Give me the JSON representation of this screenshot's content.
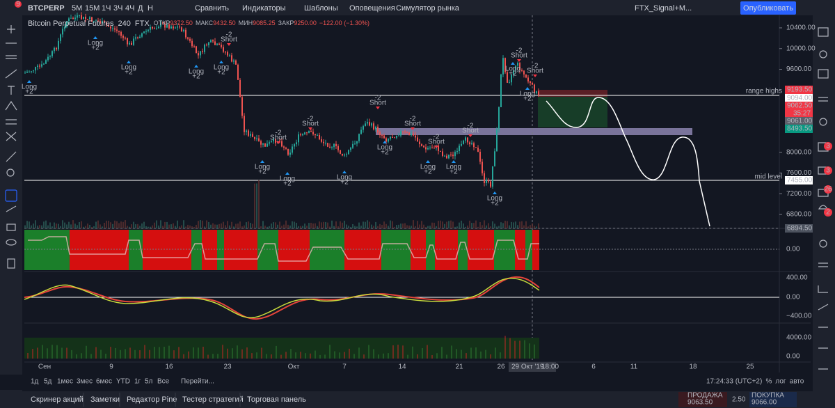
{
  "toolbar": {
    "symbol": "BTCPERP",
    "badge": "9",
    "intervals": [
      "5М",
      "15М",
      "1Ч",
      "3Ч",
      "4Ч",
      "Д",
      "Н"
    ],
    "buttons": [
      "Сравнить",
      "Индикаторы",
      "Шаблоны",
      "Оповещения",
      "Симулятор рынка"
    ],
    "layout_name": "FTX_Signal+M...",
    "publish": "Опубликовать"
  },
  "legend": {
    "title": "Bitcoin Perpetual Futures",
    "interval": "240",
    "exchange": "FTX",
    "ohlc": [
      {
        "label": "ОТКР",
        "value": "9372.50"
      },
      {
        "label": "МАКС",
        "value": "9432.50"
      },
      {
        "label": "МИН",
        "value": "9085.25"
      },
      {
        "label": "ЗАКР",
        "value": "9250.00"
      }
    ],
    "change": "−122.00 (−1.30%)"
  },
  "price_axis": {
    "ticks": [
      {
        "value": 10400,
        "label": "10400.00"
      },
      {
        "value": 10000,
        "label": "10000.00"
      },
      {
        "value": 9600,
        "label": "9600.00"
      },
      {
        "value": 8000,
        "label": "8000.00"
      },
      {
        "value": 7600,
        "label": "7600.00"
      },
      {
        "value": 7200,
        "label": "7200.00"
      },
      {
        "value": 6800,
        "label": "6800.00"
      }
    ],
    "badges": [
      {
        "value": 9193.5,
        "label": "9193.50",
        "color": "#f23645"
      },
      {
        "value": 9094,
        "label": "9094.00",
        "color": "#ffffff"
      },
      {
        "value": 9062.5,
        "label": "9062.50",
        "color": "#f23645"
      },
      {
        "value": 9061,
        "label": "9061.00",
        "color": "#5d606b"
      },
      {
        "value": 8493.5,
        "label": "8493.50",
        "color": "#089981"
      },
      {
        "value": 7455,
        "label": "7455.00",
        "color": "#ffffff"
      },
      {
        "value": 6894.5,
        "label": "6894.50",
        "color": "#4c525e"
      }
    ],
    "countdown": "35:27"
  },
  "annotations": [
    "range highs",
    "mid level"
  ],
  "signals": [
    {
      "label": "Long",
      "value": "+2"
    },
    {
      "label": "Long",
      "value": "+2"
    },
    {
      "label": "Long",
      "value": "+2"
    },
    {
      "label": "Long",
      "value": "+2"
    },
    {
      "label": "Short",
      "value": "-2"
    },
    {
      "label": "Long",
      "value": "+2"
    },
    {
      "label": "Short",
      "value": "-2"
    },
    {
      "label": "Long",
      "value": "+2"
    },
    {
      "label": "Short",
      "value": "-2"
    },
    {
      "label": "Long",
      "value": "+2"
    },
    {
      "label": "Long",
      "value": "+2"
    },
    {
      "label": "Short",
      "value": "-2"
    },
    {
      "label": "Long",
      "value": "+2"
    },
    {
      "label": "Short",
      "value": "-2"
    },
    {
      "label": "Long",
      "value": "+2"
    },
    {
      "label": "Short",
      "value": "-2"
    },
    {
      "label": "Long",
      "value": "+2"
    },
    {
      "label": "Short",
      "value": "-2"
    },
    {
      "label": "Long",
      "value": "+2"
    },
    {
      "label": "Short",
      "value": "-2"
    },
    {
      "label": "Long",
      "value": "+2"
    },
    {
      "label": "Short",
      "value": "-2"
    },
    {
      "label": "Long",
      "value": "+2"
    }
  ],
  "indicator_axes": [
    [
      "0.00"
    ],
    [
      "400.00",
      "0.00",
      "−400.00"
    ],
    [
      "4000.00",
      "0.00"
    ]
  ],
  "time_axis": [
    "Сен",
    "9",
    "16",
    "23",
    "Окт",
    "7",
    "14",
    "21",
    "26",
    "29 Окт '19",
    "18:00",
    "6",
    "11",
    "18",
    "25"
  ],
  "bottom_bar": {
    "ranges": [
      "1д",
      "5д",
      "1мес",
      "3мес",
      "6мес",
      "YTD",
      "1г",
      "5л",
      "Все"
    ],
    "goto": "Перейти...",
    "clock": "17:24:33 (UTC+2)",
    "options": [
      "%",
      "лог",
      "авто"
    ]
  },
  "tabs": [
    "Скринер акций",
    "Заметки",
    "Редактор Pine",
    "Тестер стратегий",
    "Торговая панель"
  ],
  "trade": {
    "sell_label": "ПРОДАЖА",
    "sell_price": "9063.50",
    "spread": "2.50",
    "buy_label": "ПОКУПКА",
    "buy_price": "9066.00"
  },
  "sidebar_badges": [
    "3",
    "3",
    "26",
    "2"
  ]
}
